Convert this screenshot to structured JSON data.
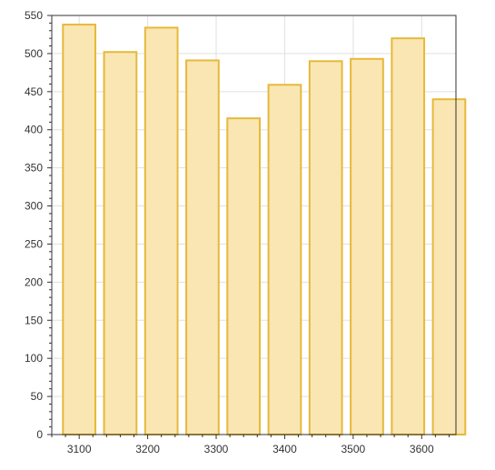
{
  "chart_data": {
    "type": "bar",
    "title": "",
    "xlabel": "",
    "ylabel": "",
    "x": [
      3100,
      3160,
      3220,
      3280,
      3340,
      3400,
      3460,
      3520,
      3580,
      3640
    ],
    "values": [
      538,
      502,
      534,
      491,
      415,
      459,
      490,
      493,
      520,
      440
    ],
    "bar_width": 50,
    "xlim": [
      3060,
      3650
    ],
    "ylim": [
      0,
      550
    ],
    "x_ticks": [
      3100,
      3200,
      3300,
      3400,
      3500,
      3600
    ],
    "x_tick_labels": [
      "3100",
      "3200",
      "3300",
      "3400",
      "3500",
      "3600"
    ],
    "y_ticks": [
      0,
      50,
      100,
      150,
      200,
      250,
      300,
      350,
      400,
      450,
      500,
      550
    ],
    "y_tick_labels": [
      "0",
      "50",
      "100",
      "150",
      "200",
      "250",
      "300",
      "350",
      "400",
      "450",
      "500",
      "550"
    ],
    "grid": true,
    "legend": "none",
    "colors": {
      "bar_fill": "#f9e6b3",
      "bar_stroke": "#e6b93a",
      "grid": "#e0e0e0",
      "axis": "#333333"
    }
  }
}
